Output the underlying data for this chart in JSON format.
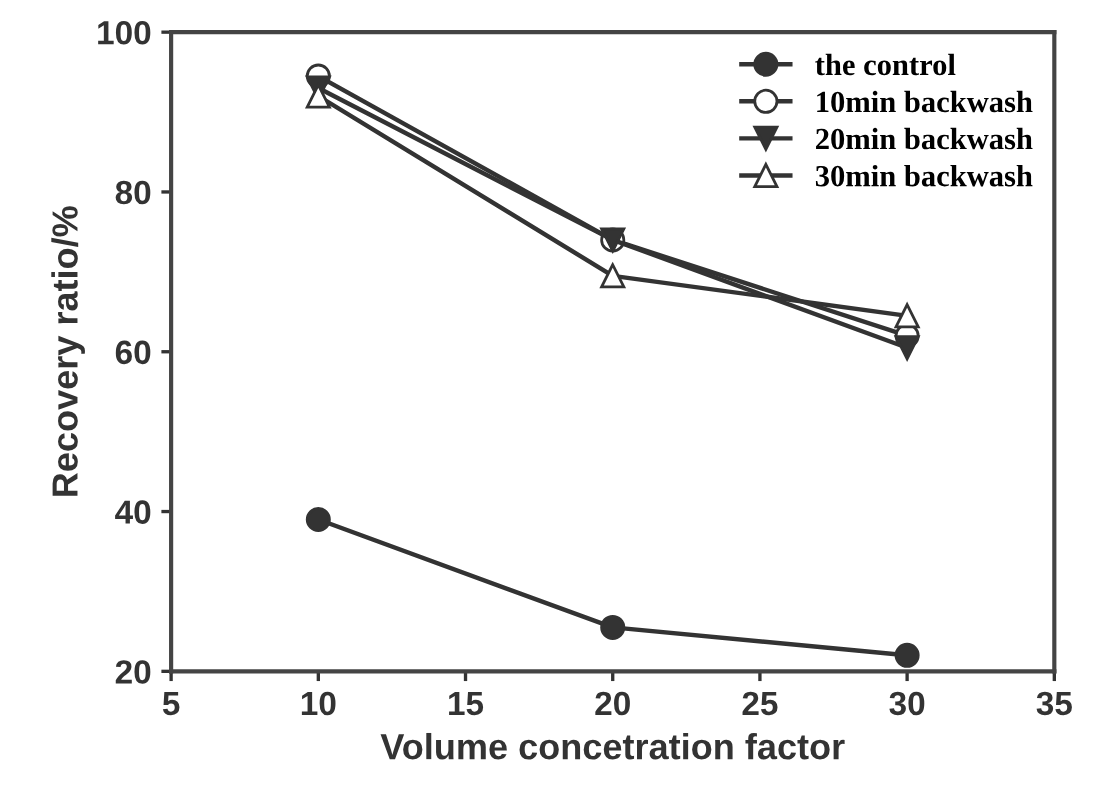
{
  "chart_data": {
    "type": "line",
    "xlabel": "Volume concetration factor",
    "ylabel": "Recovery ratio/%",
    "x": [
      10,
      20,
      30
    ],
    "series": [
      {
        "name": "the control",
        "color": "#333333",
        "values": [
          39,
          25.5,
          22
        ],
        "marker": "circle"
      },
      {
        "name": "10min backwash",
        "color": "#333333",
        "values": [
          94.5,
          74,
          62
        ],
        "marker": "circle"
      },
      {
        "name": "20min backwash",
        "color": "#333333",
        "values": [
          93,
          74,
          60.5
        ],
        "marker": "triangle_down"
      },
      {
        "name": "30min backwash",
        "color": "#333333",
        "values": [
          92,
          69.5,
          64.5
        ],
        "marker": "triangle"
      }
    ],
    "xlim": [
      5,
      35
    ],
    "xticks": [
      5,
      10,
      15,
      20,
      25,
      30,
      35
    ],
    "ylim": [
      20,
      100
    ],
    "yticks": [
      20,
      40,
      60,
      80,
      100
    ],
    "grid": false,
    "legend": "top right",
    "line_style": "solid"
  }
}
